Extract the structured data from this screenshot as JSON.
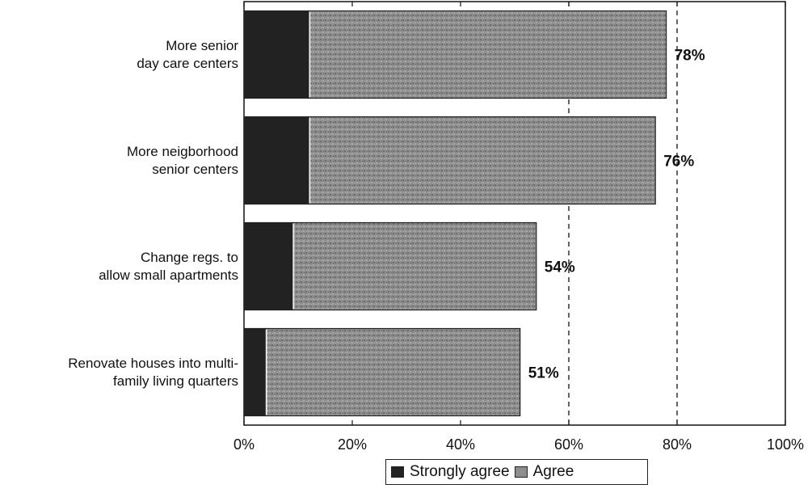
{
  "chart_data": {
    "type": "bar",
    "orientation": "horizontal",
    "stacked": true,
    "categories": [
      "More senior\nday care centers",
      "More neigborhood\nsenior centers",
      "Change regs. to\nallow small apartments",
      "Renovate houses into multi-\nfamily living quarters"
    ],
    "series": [
      {
        "name": "Strongly agree",
        "values": [
          12,
          12,
          9,
          4
        ],
        "color": "#222222"
      },
      {
        "name": "Agree",
        "values": [
          66,
          64,
          45,
          47
        ],
        "color": "#8a8a8a"
      }
    ],
    "totals": [
      78,
      76,
      54,
      51
    ],
    "total_labels": [
      "78%",
      "76%",
      "54%",
      "51%"
    ],
    "xlim": [
      0,
      100
    ],
    "xticks": [
      0,
      20,
      40,
      60,
      80,
      100
    ],
    "xtick_labels": [
      "0%",
      "20%",
      "40%",
      "60%",
      "80%",
      "100%"
    ],
    "reference_lines": [
      60,
      80
    ],
    "legend_position": "bottom",
    "grid": false
  }
}
